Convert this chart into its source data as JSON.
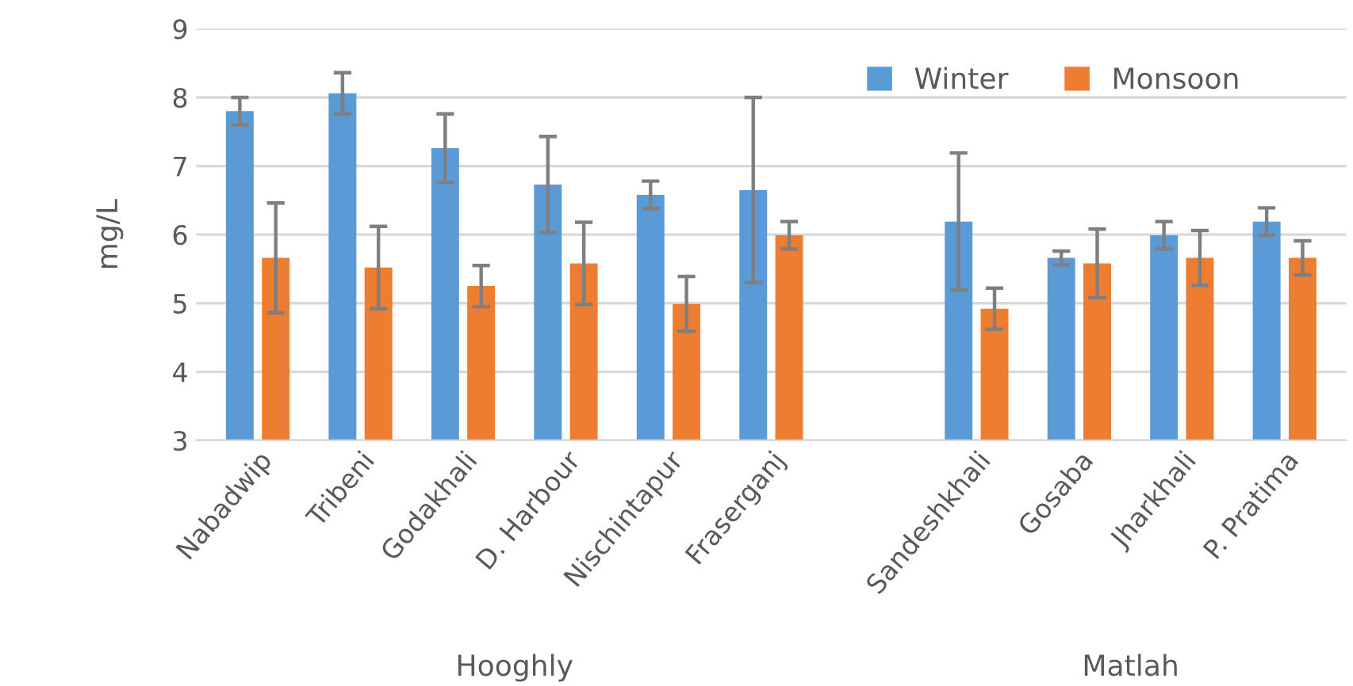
{
  "chart_data": {
    "type": "bar",
    "ylabel": "mg/L",
    "categories": [
      "Nabadwip",
      "Tribeni",
      "Godakhali",
      "D. Harbour",
      "Nischintapur",
      "Fraserganj",
      null,
      "Sandeshkhali",
      "Gosaba",
      "Jharkhali",
      "P. Pratima"
    ],
    "series": [
      {
        "name": "Winter",
        "color": "#5b9bd5",
        "values": [
          7.8,
          8.06,
          7.26,
          6.73,
          6.58,
          6.65,
          null,
          6.19,
          5.66,
          5.99,
          6.19
        ],
        "errors": [
          0.2,
          0.3,
          0.5,
          0.7,
          0.2,
          1.35,
          null,
          1.0,
          0.1,
          0.2,
          0.2
        ]
      },
      {
        "name": "Monsoon",
        "color": "#ed7d31",
        "values": [
          5.66,
          5.52,
          5.25,
          5.58,
          4.99,
          5.99,
          null,
          4.92,
          5.58,
          5.66,
          5.66
        ],
        "errors": [
          0.8,
          0.6,
          0.3,
          0.6,
          0.4,
          0.2,
          null,
          0.3,
          0.5,
          0.4,
          0.25
        ]
      }
    ],
    "ylim": [
      3,
      9
    ],
    "yticks": [
      3,
      4,
      5,
      6,
      7,
      8,
      9
    ],
    "grid": "y",
    "legend": "top right",
    "annotations": [
      "Hooghly",
      "Matlah"
    ]
  }
}
